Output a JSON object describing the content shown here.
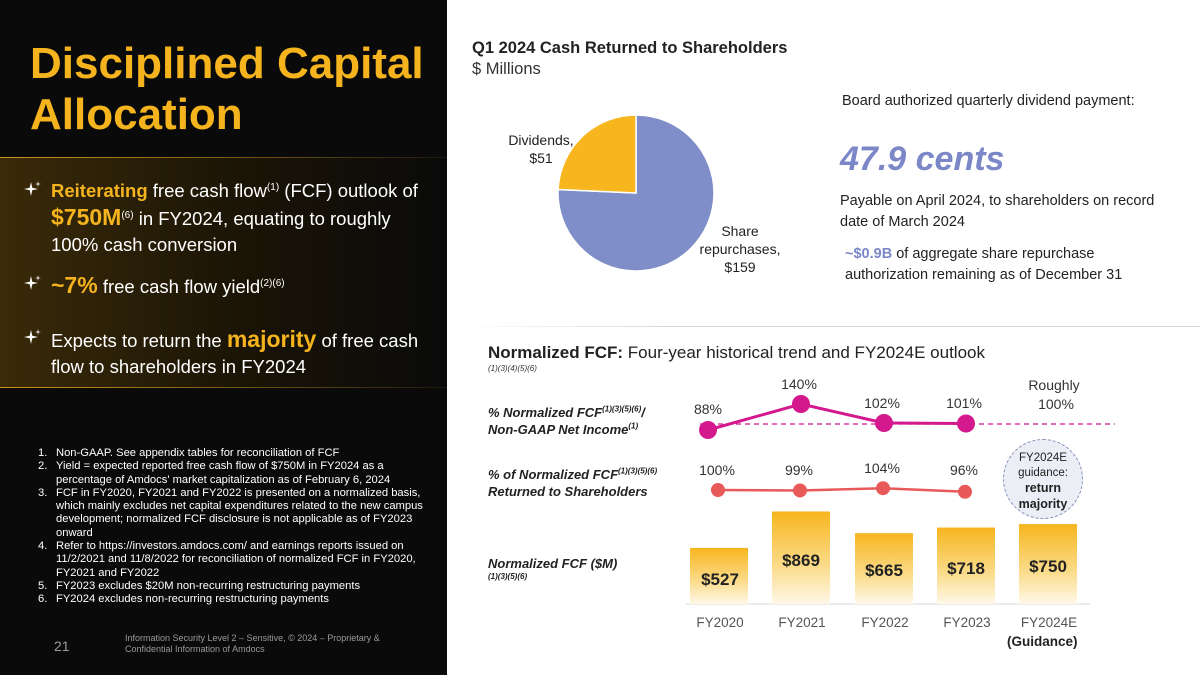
{
  "left": {
    "title": "Disciplined Capital Allocation",
    "bullets": [
      {
        "highlight": "Reiterating",
        "text1": " free cash flow",
        "sup1": "(1)",
        "text2": " (FCF) outlook of ",
        "value": "$750M",
        "sup2": "(6)",
        "text3": "  in FY2024, equating to roughly 100% cash conversion"
      },
      {
        "value": "~7%",
        "text1": " free cash flow yield",
        "sup1": "(2)(6)"
      },
      {
        "text1": "Expects to return the ",
        "highlight": "majority",
        "text2": " of free cash flow to shareholders in FY2024"
      }
    ],
    "notes": [
      "Non-GAAP. See appendix tables for reconciliation of FCF",
      "Yield = expected reported free cash flow of $750M in FY2024 as a percentage of Amdocs' market capitalization as of February 6, 2024",
      "FCF in FY2020, FY2021 and FY2022 is presented on a normalized basis, which mainly excludes net capital expenditures related to the new campus development; normalized FCF disclosure is not applicable as of FY2023 onward",
      "Refer to https://investors.amdocs.com/ and earnings reports issued on 11/2/2021 and 11/8/2022 for reconciliation of normalized FCF in FY2020, FY2021 and FY2022",
      "FY2023 excludes $20M non-recurring restructuring payments",
      "FY2024 excludes non-recurring restructuring payments"
    ],
    "page_number": "21",
    "confidential": "Information Security Level 2 – Sensitive, © 2024 – Proprietary & Confidential Information of Amdocs"
  },
  "board": {
    "authorized": "Board authorized quarterly dividend payment:",
    "cents": "47.9 cents",
    "payable": "Payable on April 2024, to shareholders on record date of March 2024",
    "repurchase_amount": "~$0.9B",
    "repurchase_text": " of aggregate share repurchase authorization remaining as of December 31"
  },
  "fcf": {
    "title_bold": "Normalized FCF:",
    "title_rest": " Four-year historical trend and FY2024E outlook",
    "title_foot": "(1)(3)(4)(5)(6)",
    "row1_label_a": "% Normalized FCF",
    "row1_sup": "(1)(3)(5)(6)",
    "row1_label_b": "/",
    "row1_label_c": "Non-GAAP Net Income",
    "row1_sup2": "(1)",
    "row2_label_a": "% of Normalized FCF",
    "row2_sup": "(1)(3)(5)(6)",
    "row2_label_c": "Returned to Shareholders",
    "row3_label": "Normalized FCF ($M)",
    "row3_foot": "(1)(3)(5)(6)",
    "guidance_line1": "FY2024E",
    "guidance_line2": "guidance:",
    "guidance_line3": "return",
    "guidance_line4": "majority",
    "guidance_note": "(Guidance)"
  },
  "chart_data": [
    {
      "type": "pie",
      "title": "Q1 2024 Cash Returned to Shareholders",
      "subtitle": "$ Millions",
      "slices": [
        {
          "label": "Share repurchases, $159",
          "value": 159,
          "color": "#7f8ec8"
        },
        {
          "label": "Dividends, $51",
          "value": 51,
          "color": "#f7b51e"
        }
      ]
    },
    {
      "type": "line",
      "name": "% Normalized FCF / Non-GAAP Net Income",
      "categories": [
        "FY2020",
        "FY2021",
        "FY2022",
        "FY2023",
        "FY2024E"
      ],
      "values": [
        88,
        140,
        102,
        101,
        100
      ],
      "labels": [
        "88%",
        "140%",
        "102%",
        "101%",
        "Roughly 100%"
      ],
      "color": "#d3198d"
    },
    {
      "type": "line",
      "name": "% of Normalized FCF Returned to Shareholders",
      "categories": [
        "FY2020",
        "FY2021",
        "FY2022",
        "FY2023"
      ],
      "values": [
        100,
        99,
        104,
        96
      ],
      "labels": [
        "100%",
        "99%",
        "104%",
        "96%"
      ],
      "color": "#e85a5a"
    },
    {
      "type": "bar",
      "name": "Normalized FCF ($M)",
      "categories": [
        "FY2020",
        "FY2021",
        "FY2022",
        "FY2023",
        "FY2024E"
      ],
      "values": [
        527,
        869,
        665,
        718,
        750
      ],
      "labels": [
        "$527",
        "$869",
        "$665",
        "$718",
        "$750"
      ],
      "color": "#f7b51e"
    }
  ]
}
